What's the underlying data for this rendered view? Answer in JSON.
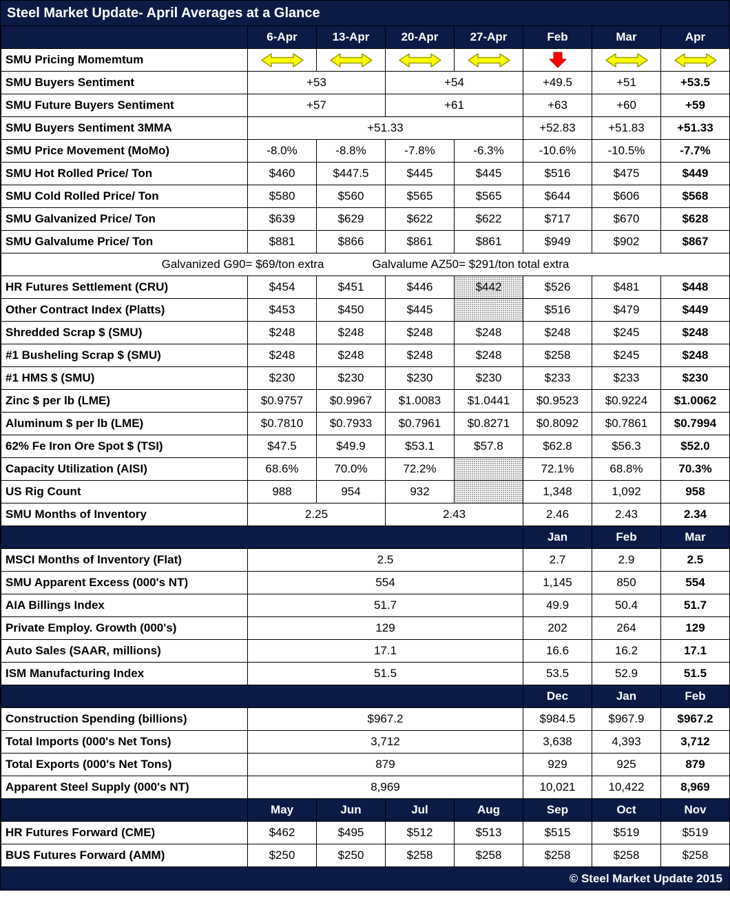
{
  "title": "Steel Market Update- April Averages at a Glance",
  "footer": "© Steel Market Update 2015",
  "colors": {
    "navy": "#0B1B45",
    "grid": "#000000",
    "cell_background": "#FFFFFF",
    "header_text": "#FFFFFF",
    "body_text": "#000000",
    "arrow_yellow": "#FFFF00",
    "arrow_yellow_outline": "#9C9C00",
    "arrow_red": "#FF0000",
    "arrow_red_outline": "#B30000",
    "hatch_dot": "#8A8A8A"
  },
  "icons": {
    "flat": "left-right-arrow",
    "down": "down-arrow"
  },
  "chart_data": {
    "type": "table",
    "title": "Steel Market Update- April Averages at a Glance",
    "column_groups": {
      "weekly_april": [
        "6-Apr",
        "13-Apr",
        "20-Apr",
        "27-Apr"
      ],
      "monthly_top": [
        "Feb",
        "Mar",
        "Apr"
      ],
      "monthly_mid": [
        "Jan",
        "Feb",
        "Mar"
      ],
      "monthly_lag": [
        "Dec",
        "Jan",
        "Feb"
      ],
      "forward_months": [
        "May",
        "Jun",
        "Jul",
        "Aug",
        "Sep",
        "Oct",
        "Nov"
      ]
    },
    "rows": [
      {
        "kind": "colhead",
        "cells": [
          {
            "t": "",
            "s": 1
          },
          {
            "t": "6-Apr"
          },
          {
            "t": "13-Apr"
          },
          {
            "t": "20-Apr"
          },
          {
            "t": "27-Apr"
          },
          {
            "t": "Feb"
          },
          {
            "t": "Mar"
          },
          {
            "t": "Apr"
          }
        ]
      },
      {
        "kind": "data",
        "label": "SMU Pricing Momemtum",
        "cells": [
          {
            "i": "flat"
          },
          {
            "i": "flat"
          },
          {
            "i": "flat"
          },
          {
            "i": "flat"
          },
          {
            "i": "down"
          },
          {
            "i": "flat"
          },
          {
            "i": "flat"
          }
        ]
      },
      {
        "kind": "data",
        "label": "SMU Buyers Sentiment",
        "cells": [
          {
            "t": "+53",
            "s": 2
          },
          {
            "t": "+54",
            "s": 2
          },
          {
            "t": "+49.5"
          },
          {
            "t": "+51"
          },
          {
            "t": "+53.5",
            "b": true
          }
        ]
      },
      {
        "kind": "data",
        "label": "SMU Future Buyers Sentiment",
        "cells": [
          {
            "t": "+57",
            "s": 2
          },
          {
            "t": "+61",
            "s": 2
          },
          {
            "t": "+63"
          },
          {
            "t": "+60"
          },
          {
            "t": "+59",
            "b": true
          }
        ]
      },
      {
        "kind": "data",
        "label": "SMU Buyers Sentiment 3MMA",
        "cells": [
          {
            "t": "+51.33",
            "s": 4
          },
          {
            "t": "+52.83"
          },
          {
            "t": "+51.83"
          },
          {
            "t": "+51.33",
            "b": true
          }
        ]
      },
      {
        "kind": "data",
        "label": "SMU Price Movement (MoMo)",
        "cells": [
          {
            "t": "-8.0%"
          },
          {
            "t": "-8.8%"
          },
          {
            "t": "-7.8%"
          },
          {
            "t": "-6.3%"
          },
          {
            "t": "-10.6%"
          },
          {
            "t": "-10.5%"
          },
          {
            "t": "-7.7%",
            "b": true
          }
        ]
      },
      {
        "kind": "data",
        "label": "SMU Hot Rolled Price/ Ton",
        "cells": [
          {
            "t": "$460"
          },
          {
            "t": "$447.5"
          },
          {
            "t": "$445"
          },
          {
            "t": "$445"
          },
          {
            "t": "$516"
          },
          {
            "t": "$475"
          },
          {
            "t": "$449",
            "b": true
          }
        ]
      },
      {
        "kind": "data",
        "label": "SMU Cold Rolled Price/ Ton",
        "cells": [
          {
            "t": "$580"
          },
          {
            "t": "$560"
          },
          {
            "t": "$565"
          },
          {
            "t": "$565"
          },
          {
            "t": "$644"
          },
          {
            "t": "$606"
          },
          {
            "t": "$568",
            "b": true
          }
        ]
      },
      {
        "kind": "data",
        "label": "SMU Galvanized Price/ Ton",
        "cells": [
          {
            "t": "$639"
          },
          {
            "t": "$629"
          },
          {
            "t": "$622"
          },
          {
            "t": "$622"
          },
          {
            "t": "$717"
          },
          {
            "t": "$670"
          },
          {
            "t": "$628",
            "b": true
          }
        ]
      },
      {
        "kind": "data",
        "label": "SMU Galvalume Price/ Ton",
        "cells": [
          {
            "t": "$881"
          },
          {
            "t": "$866"
          },
          {
            "t": "$861"
          },
          {
            "t": "$861"
          },
          {
            "t": "$949"
          },
          {
            "t": "$902"
          },
          {
            "t": "$867",
            "b": true
          }
        ]
      },
      {
        "kind": "note",
        "parts": [
          "Galvanized G90= $69/ton extra",
          "Galvalume AZ50= $291/ton total extra"
        ]
      },
      {
        "kind": "data",
        "label": "HR Futures Settlement (CRU)",
        "cells": [
          {
            "t": "$454"
          },
          {
            "t": "$451"
          },
          {
            "t": "$446"
          },
          {
            "t": "$442",
            "h": true
          },
          {
            "t": "$526"
          },
          {
            "t": "$481"
          },
          {
            "t": "$448",
            "b": true
          }
        ]
      },
      {
        "kind": "data",
        "label": "Other Contract Index (Platts)",
        "cells": [
          {
            "t": "$453"
          },
          {
            "t": "$450"
          },
          {
            "t": "$445"
          },
          {
            "t": "",
            "h": true
          },
          {
            "t": "$516"
          },
          {
            "t": "$479"
          },
          {
            "t": "$449",
            "b": true
          }
        ]
      },
      {
        "kind": "data",
        "label": "Shredded Scrap $ (SMU)",
        "cells": [
          {
            "t": "$248"
          },
          {
            "t": "$248"
          },
          {
            "t": "$248"
          },
          {
            "t": "$248"
          },
          {
            "t": "$248"
          },
          {
            "t": "$245"
          },
          {
            "t": "$248",
            "b": true
          }
        ]
      },
      {
        "kind": "data",
        "label": "#1 Busheling Scrap $ (SMU)",
        "cells": [
          {
            "t": "$248"
          },
          {
            "t": "$248"
          },
          {
            "t": "$248"
          },
          {
            "t": "$248"
          },
          {
            "t": "$258"
          },
          {
            "t": "$245"
          },
          {
            "t": "$248",
            "b": true
          }
        ]
      },
      {
        "kind": "data",
        "label": "#1 HMS $ (SMU)",
        "cells": [
          {
            "t": "$230"
          },
          {
            "t": "$230"
          },
          {
            "t": "$230"
          },
          {
            "t": "$230"
          },
          {
            "t": "$233"
          },
          {
            "t": "$233"
          },
          {
            "t": "$230",
            "b": true
          }
        ]
      },
      {
        "kind": "data",
        "label": "Zinc $ per lb (LME)",
        "cells": [
          {
            "t": "$0.9757"
          },
          {
            "t": "$0.9967"
          },
          {
            "t": "$1.0083"
          },
          {
            "t": "$1.0441"
          },
          {
            "t": "$0.9523"
          },
          {
            "t": "$0.9224"
          },
          {
            "t": "$1.0062",
            "b": true
          }
        ]
      },
      {
        "kind": "data",
        "label": "Aluminum $ per lb (LME)",
        "cells": [
          {
            "t": "$0.7810"
          },
          {
            "t": "$0.7933"
          },
          {
            "t": "$0.7961"
          },
          {
            "t": "$0.8271"
          },
          {
            "t": "$0.8092"
          },
          {
            "t": "$0.7861"
          },
          {
            "t": "$0.7994",
            "b": true
          }
        ]
      },
      {
        "kind": "data",
        "label": "62% Fe Iron Ore Spot $ (TSI)",
        "cells": [
          {
            "t": "$47.5"
          },
          {
            "t": "$49.9"
          },
          {
            "t": "$53.1"
          },
          {
            "t": "$57.8"
          },
          {
            "t": "$62.8"
          },
          {
            "t": "$56.3"
          },
          {
            "t": "$52.0",
            "b": true
          }
        ]
      },
      {
        "kind": "data",
        "label": "Capacity Utilization (AISI)",
        "cells": [
          {
            "t": "68.6%"
          },
          {
            "t": "70.0%"
          },
          {
            "t": "72.2%"
          },
          {
            "t": "",
            "h": true
          },
          {
            "t": "72.1%"
          },
          {
            "t": "68.8%"
          },
          {
            "t": "70.3%",
            "b": true
          }
        ]
      },
      {
        "kind": "data",
        "label": "US Rig Count",
        "cells": [
          {
            "t": "988"
          },
          {
            "t": "954"
          },
          {
            "t": "932"
          },
          {
            "t": "",
            "h": true
          },
          {
            "t": "1,348"
          },
          {
            "t": "1,092"
          },
          {
            "t": "958",
            "b": true
          }
        ]
      },
      {
        "kind": "data",
        "label": "SMU Months of Inventory",
        "cells": [
          {
            "t": "2.25",
            "s": 2
          },
          {
            "t": "2.43",
            "s": 2
          },
          {
            "t": "2.46"
          },
          {
            "t": "2.43"
          },
          {
            "t": "2.34",
            "b": true
          }
        ]
      },
      {
        "kind": "colhead",
        "cells": [
          {
            "t": "",
            "s": 5
          },
          {
            "t": "Jan"
          },
          {
            "t": "Feb"
          },
          {
            "t": "Mar"
          }
        ]
      },
      {
        "kind": "data",
        "label": "MSCI Months of Inventory (Flat)",
        "cells": [
          {
            "t": "2.5",
            "s": 4
          },
          {
            "t": "2.7"
          },
          {
            "t": "2.9"
          },
          {
            "t": "2.5",
            "b": true
          }
        ]
      },
      {
        "kind": "data",
        "label": "SMU Apparent Excess (000's NT)",
        "cells": [
          {
            "t": "554",
            "s": 4
          },
          {
            "t": "1,145"
          },
          {
            "t": "850"
          },
          {
            "t": "554",
            "b": true
          }
        ]
      },
      {
        "kind": "data",
        "label": "AIA Billings Index",
        "cells": [
          {
            "t": "51.7",
            "s": 4
          },
          {
            "t": "49.9"
          },
          {
            "t": "50.4"
          },
          {
            "t": "51.7",
            "b": true
          }
        ]
      },
      {
        "kind": "data",
        "label": "Private Employ. Growth (000's)",
        "cells": [
          {
            "t": "129",
            "s": 4
          },
          {
            "t": "202"
          },
          {
            "t": "264"
          },
          {
            "t": "129",
            "b": true
          }
        ]
      },
      {
        "kind": "data",
        "label": "Auto Sales (SAAR, millions)",
        "cells": [
          {
            "t": "17.1",
            "s": 4
          },
          {
            "t": "16.6"
          },
          {
            "t": "16.2"
          },
          {
            "t": "17.1",
            "b": true
          }
        ]
      },
      {
        "kind": "data",
        "label": "ISM Manufacturing Index",
        "cells": [
          {
            "t": "51.5",
            "s": 4
          },
          {
            "t": "53.5"
          },
          {
            "t": "52.9"
          },
          {
            "t": "51.5",
            "b": true
          }
        ]
      },
      {
        "kind": "colhead",
        "cells": [
          {
            "t": "",
            "s": 5
          },
          {
            "t": "Dec"
          },
          {
            "t": "Jan"
          },
          {
            "t": "Feb"
          }
        ]
      },
      {
        "kind": "data",
        "label": "Construction Spending (billions)",
        "cells": [
          {
            "t": "$967.2",
            "s": 4
          },
          {
            "t": "$984.5"
          },
          {
            "t": "$967.9"
          },
          {
            "t": "$967.2",
            "b": true
          }
        ]
      },
      {
        "kind": "data",
        "label": "Total Imports (000's Net Tons)",
        "cells": [
          {
            "t": "3,712",
            "s": 4
          },
          {
            "t": "3,638"
          },
          {
            "t": "4,393"
          },
          {
            "t": "3,712",
            "b": true
          }
        ]
      },
      {
        "kind": "data",
        "label": "Total Exports (000's Net Tons)",
        "cells": [
          {
            "t": "879",
            "s": 4
          },
          {
            "t": "929"
          },
          {
            "t": "925"
          },
          {
            "t": "879",
            "b": true
          }
        ]
      },
      {
        "kind": "data",
        "label": "Apparent Steel Supply (000's NT)",
        "cells": [
          {
            "t": "8,969",
            "s": 4
          },
          {
            "t": "10,021"
          },
          {
            "t": "10,422"
          },
          {
            "t": "8,969",
            "b": true
          }
        ]
      },
      {
        "kind": "colhead",
        "cells": [
          {
            "t": "",
            "s": 1
          },
          {
            "t": "May"
          },
          {
            "t": "Jun"
          },
          {
            "t": "Jul"
          },
          {
            "t": "Aug"
          },
          {
            "t": "Sep"
          },
          {
            "t": "Oct"
          },
          {
            "t": "Nov"
          }
        ]
      },
      {
        "kind": "data",
        "label": "HR Futures Forward (CME)",
        "cells": [
          {
            "t": "$462"
          },
          {
            "t": "$495"
          },
          {
            "t": "$512"
          },
          {
            "t": "$513"
          },
          {
            "t": "$515"
          },
          {
            "t": "$519"
          },
          {
            "t": "$519"
          }
        ]
      },
      {
        "kind": "data",
        "label": "BUS Futures Forward (AMM)",
        "cells": [
          {
            "t": "$250"
          },
          {
            "t": "$250"
          },
          {
            "t": "$258"
          },
          {
            "t": "$258"
          },
          {
            "t": "$258"
          },
          {
            "t": "$258"
          },
          {
            "t": "$258"
          }
        ]
      }
    ]
  }
}
